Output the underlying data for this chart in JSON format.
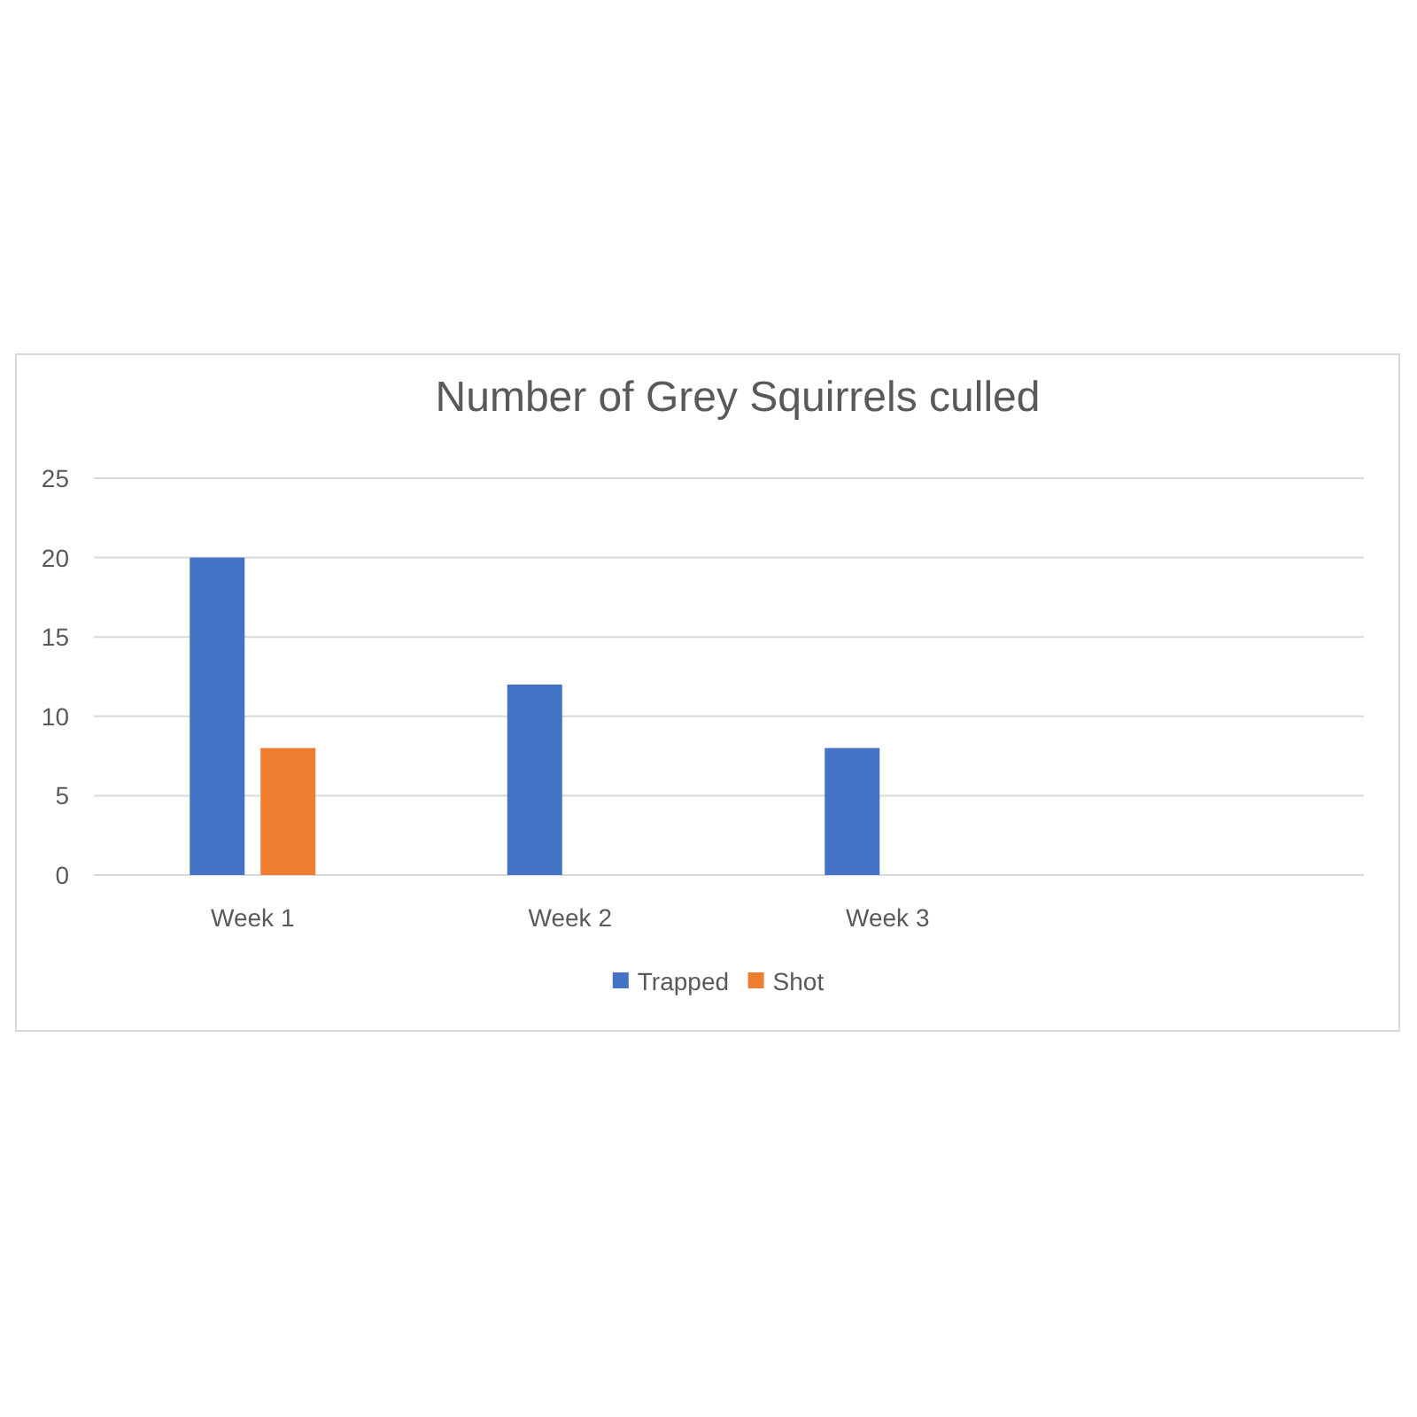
{
  "chart_data": {
    "type": "bar",
    "title": "Number of Grey Squirrels culled",
    "categories": [
      "Week 1",
      "Week 2",
      "Week 3",
      null
    ],
    "series": [
      {
        "name": "Trapped",
        "color": "#4472c4",
        "values": [
          20,
          12,
          8,
          null
        ]
      },
      {
        "name": "Shot",
        "color": "#ed7d31",
        "values": [
          8,
          null,
          null,
          null
        ]
      }
    ],
    "ylim": [
      0,
      25
    ],
    "yticks": [
      0,
      5,
      10,
      15,
      20,
      25
    ],
    "grid": "y",
    "legend": "bottom"
  }
}
